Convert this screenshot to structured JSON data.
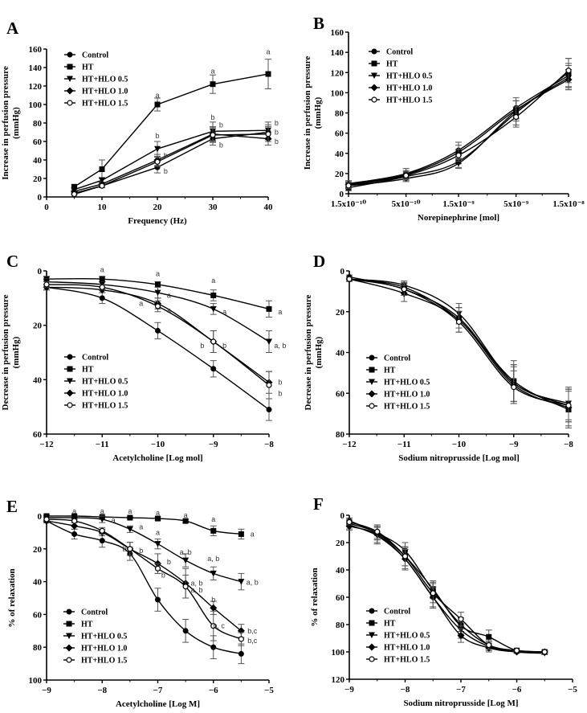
{
  "legend_labels": [
    "Control",
    "HT",
    "HT+HLO 0.5",
    "HT+HLO 1.0",
    "HT+HLO 1.5"
  ],
  "marker_shapes": [
    "filled-circle",
    "filled-square",
    "filled-triangle-down",
    "filled-diamond",
    "open-circle"
  ],
  "colors": {
    "line": "#000000",
    "error_bar": "#555555"
  },
  "chart_data": [
    {
      "panel": "A",
      "type": "line",
      "curve": "straight",
      "xlabel": "Frequency (Hz)",
      "ylabel": [
        "Increase in perfusion pressure",
        "(mmHg)"
      ],
      "xlim": [
        0,
        40
      ],
      "ylim": [
        0,
        160
      ],
      "y_inverted": false,
      "xscale": "linear",
      "xticks": [
        0,
        10,
        20,
        30,
        40
      ],
      "xtick_labels": [
        "0",
        "10",
        "20",
        "30",
        "40"
      ],
      "yticks": [
        0,
        20,
        40,
        60,
        80,
        100,
        120,
        140,
        160
      ],
      "legend": "top-left",
      "x": [
        5,
        10,
        20,
        30,
        40
      ],
      "series": [
        {
          "name": "Control",
          "values": [
            4,
            12,
            32,
            63,
            70
          ],
          "errors": [
            1,
            2,
            6,
            7,
            8
          ]
        },
        {
          "name": "HT",
          "values": [
            11,
            30,
            100,
            122,
            133
          ],
          "errors": [
            2,
            10,
            7,
            10,
            16
          ]
        },
        {
          "name": "HT+HLO 0.5",
          "values": [
            8,
            18,
            52,
            71,
            72
          ],
          "errors": [
            2,
            3,
            8,
            10,
            9
          ]
        },
        {
          "name": "HT+HLO 1.0",
          "values": [
            6,
            14,
            40,
            68,
            63
          ],
          "errors": [
            1,
            2,
            6,
            8,
            7
          ]
        },
        {
          "name": "HT+HLO 1.5",
          "values": [
            3,
            12,
            38,
            67,
            68
          ],
          "errors": [
            1,
            2,
            5,
            8,
            8
          ]
        }
      ],
      "annotations": [
        {
          "x": 20,
          "y": 110,
          "text": "a"
        },
        {
          "x": 30,
          "y": 136,
          "text": "a"
        },
        {
          "x": 40,
          "y": 157,
          "text": "a"
        },
        {
          "x": 20,
          "y": 66,
          "text": "b"
        },
        {
          "x": 21.5,
          "y": 45,
          "text": "b"
        },
        {
          "x": 21.5,
          "y": 28,
          "text": "b"
        },
        {
          "x": 30,
          "y": 86,
          "text": "b"
        },
        {
          "x": 31.5,
          "y": 78,
          "text": "b"
        },
        {
          "x": 31.5,
          "y": 56,
          "text": "b"
        },
        {
          "x": 41.5,
          "y": 80,
          "text": "b"
        },
        {
          "x": 41.5,
          "y": 70,
          "text": "b"
        },
        {
          "x": 41.5,
          "y": 60,
          "text": "b"
        }
      ]
    },
    {
      "panel": "B",
      "type": "line",
      "curve": "smooth",
      "xlabel": "Norepinephrine [mol]",
      "ylabel": [
        "Increase in perfusion pressure",
        "(mmHg)"
      ],
      "xlim": [
        1.5e-10,
        1.5e-08
      ],
      "ylim": [
        0,
        160
      ],
      "y_inverted": false,
      "xscale": "log",
      "xticks": [
        1.5e-10,
        5e-10,
        1.5e-09,
        5e-09,
        1.5e-08
      ],
      "xtick_labels": [
        "1.5x10⁻¹⁰",
        "5x10⁻¹⁰",
        "1.5x10⁻⁹",
        "5x10⁻⁹",
        "1.5x10⁻⁸"
      ],
      "yticks": [
        0,
        20,
        40,
        60,
        80,
        100,
        120,
        140,
        160
      ],
      "legend": "top-left",
      "x": [
        1.5e-10,
        5e-10,
        1.5e-09,
        5e-09,
        1.5e-08
      ],
      "series": [
        {
          "name": "Control",
          "values": [
            10,
            20,
            43,
            85,
            117
          ],
          "errors": [
            3,
            5,
            8,
            10,
            12
          ]
        },
        {
          "name": "HT",
          "values": [
            6,
            17,
            32,
            80,
            120
          ],
          "errors": [
            3,
            4,
            6,
            12,
            14
          ]
        },
        {
          "name": "HT+HLO 0.5",
          "values": [
            8,
            15,
            30,
            82,
            115
          ],
          "errors": [
            3,
            3,
            5,
            10,
            12
          ]
        },
        {
          "name": "HT+HLO 1.0",
          "values": [
            9,
            19,
            41,
            83,
            113
          ],
          "errors": [
            3,
            4,
            7,
            9,
            10
          ]
        },
        {
          "name": "HT+HLO 1.5",
          "values": [
            8,
            18,
            38,
            76,
            122
          ],
          "errors": [
            3,
            4,
            6,
            10,
            12
          ]
        }
      ],
      "annotations": []
    },
    {
      "panel": "C",
      "type": "line",
      "curve": "smooth",
      "xlabel": "Acetylcholine [Log mol]",
      "ylabel": [
        "Decrease in perfusion pressure",
        "(mmHg)"
      ],
      "xlim": [
        -12,
        -8
      ],
      "ylim": [
        0,
        60
      ],
      "y_inverted": true,
      "xscale": "linear",
      "xticks": [
        -12,
        -11,
        -10,
        -9,
        -8
      ],
      "xtick_labels": [
        "−12",
        "−11",
        "−10",
        "−9",
        "−8"
      ],
      "yticks": [
        0,
        20,
        40,
        60
      ],
      "legend": "bottom-left",
      "x": [
        -12,
        -11,
        -10,
        -9,
        -8
      ],
      "series": [
        {
          "name": "Control",
          "values": [
            6,
            10,
            22,
            36,
            51
          ],
          "errors": [
            1,
            2,
            3,
            3,
            4
          ]
        },
        {
          "name": "HT",
          "values": [
            3,
            3,
            5,
            9,
            14
          ],
          "errors": [
            1,
            1,
            1,
            2,
            3
          ]
        },
        {
          "name": "HT+HLO 0.5",
          "values": [
            4,
            5,
            8,
            14,
            26
          ],
          "errors": [
            1,
            1,
            2,
            2,
            4
          ]
        },
        {
          "name": "HT+HLO 1.0",
          "values": [
            6,
            7,
            12,
            26,
            41
          ],
          "errors": [
            1,
            1,
            2,
            4,
            4
          ]
        },
        {
          "name": "HT+HLO 1.5",
          "values": [
            5,
            6,
            13,
            26,
            42
          ],
          "errors": [
            1,
            1,
            2,
            4,
            5
          ]
        }
      ],
      "annotations": [
        {
          "x": -11,
          "y": -0.5,
          "text": "a"
        },
        {
          "x": -10,
          "y": 1,
          "text": "a"
        },
        {
          "x": -9,
          "y": 3.5,
          "text": "a"
        },
        {
          "x": -9.8,
          "y": 9,
          "text": "a"
        },
        {
          "x": -10.3,
          "y": 12,
          "text": "a"
        },
        {
          "x": -9.8,
          "y": 14.5,
          "text": "a"
        },
        {
          "x": -8.8,
          "y": 15,
          "text": "a"
        },
        {
          "x": -7.8,
          "y": 15,
          "text": "a"
        },
        {
          "x": -7.8,
          "y": 27.5,
          "text": "a, b"
        },
        {
          "x": -9.2,
          "y": 27.5,
          "text": "b"
        },
        {
          "x": -8.8,
          "y": 27.5,
          "text": "b"
        },
        {
          "x": -7.8,
          "y": 41,
          "text": "b"
        },
        {
          "x": -7.8,
          "y": 45,
          "text": "b"
        }
      ]
    },
    {
      "panel": "D",
      "type": "line",
      "curve": "smooth",
      "xlabel": "Sodium nitroprusside [Log mol]",
      "ylabel": [
        "Decrease in perfusion pressure",
        "(mmHg)"
      ],
      "xlim": [
        -12,
        -8
      ],
      "ylim": [
        0,
        80
      ],
      "y_inverted": true,
      "xscale": "linear",
      "xticks": [
        -12,
        -11,
        -10,
        -9,
        -8
      ],
      "xtick_labels": [
        "−12",
        "−11",
        "−10",
        "−9",
        "−8"
      ],
      "yticks": [
        0,
        20,
        40,
        60,
        80
      ],
      "legend": "bottom-left",
      "x": [
        -12,
        -11,
        -10,
        -9,
        -8
      ],
      "series": [
        {
          "name": "Control",
          "values": [
            3,
            9,
            23,
            55,
            66
          ],
          "errors": [
            1,
            3,
            5,
            9,
            8
          ]
        },
        {
          "name": "HT",
          "values": [
            4,
            8,
            24,
            54,
            68
          ],
          "errors": [
            1,
            3,
            6,
            10,
            9
          ]
        },
        {
          "name": "HT+HLO 0.5",
          "values": [
            4,
            7,
            21,
            55,
            65
          ],
          "errors": [
            1,
            2,
            5,
            9,
            8
          ]
        },
        {
          "name": "HT+HLO 1.0",
          "values": [
            4,
            11,
            24,
            56,
            67
          ],
          "errors": [
            1,
            4,
            6,
            9,
            9
          ]
        },
        {
          "name": "HT+HLO 1.5",
          "values": [
            4,
            9,
            25,
            57,
            66
          ],
          "errors": [
            1,
            3,
            5,
            8,
            8
          ]
        }
      ],
      "annotations": []
    },
    {
      "panel": "E",
      "type": "line",
      "curve": "smooth",
      "xlabel": "Acetylcholine [Log M]",
      "ylabel": [
        "% of relaxation"
      ],
      "xlim": [
        -9,
        -5
      ],
      "ylim": [
        0,
        100
      ],
      "y_inverted": true,
      "xscale": "linear",
      "xticks": [
        -9,
        -8,
        -7,
        -6,
        -5
      ],
      "xtick_labels": [
        "−9",
        "−8",
        "−7",
        "−6",
        "−5"
      ],
      "yticks": [
        0,
        20,
        40,
        60,
        80,
        100
      ],
      "legend": "bottom-left",
      "x": [
        -9,
        -8.5,
        -8,
        -7.5,
        -7,
        -6.5,
        -6,
        -5.5
      ],
      "series": [
        {
          "name": "Control",
          "values": [
            3,
            11,
            15,
            23,
            51,
            70,
            80,
            84
          ],
          "errors": [
            1,
            3,
            4,
            4,
            7,
            7,
            7,
            6
          ]
        },
        {
          "name": "HT",
          "values": [
            0,
            0,
            0.5,
            1,
            1.5,
            3,
            9,
            11
          ],
          "errors": [
            0.5,
            0.5,
            0.5,
            0.5,
            1,
            1,
            3,
            3
          ]
        },
        {
          "name": "HT+HLO 0.5",
          "values": [
            1,
            1,
            2,
            8,
            17,
            27,
            35,
            40
          ],
          "errors": [
            1,
            1,
            2,
            2,
            3,
            4,
            4,
            5
          ]
        },
        {
          "name": "HT+HLO 1.0",
          "values": [
            3,
            6,
            10,
            20,
            29,
            41,
            56,
            70
          ],
          "errors": [
            1,
            2,
            2,
            4,
            6,
            9,
            4,
            4
          ]
        },
        {
          "name": "HT+HLO 1.5",
          "values": [
            2,
            3,
            9,
            20,
            32,
            43,
            67,
            75
          ],
          "errors": [
            1,
            1,
            2,
            4,
            3,
            7,
            9,
            4
          ]
        }
      ],
      "annotations": [
        {
          "x": -8.5,
          "y": -3,
          "text": "a"
        },
        {
          "x": -8,
          "y": -3,
          "text": "a"
        },
        {
          "x": -7.5,
          "y": -3,
          "text": "a"
        },
        {
          "x": -7,
          "y": -2,
          "text": "a"
        },
        {
          "x": -6.5,
          "y": -0.5,
          "text": "a"
        },
        {
          "x": -6,
          "y": 2,
          "text": "a"
        },
        {
          "x": -5.3,
          "y": 11,
          "text": "a"
        },
        {
          "x": -7.8,
          "y": 2.5,
          "text": "a"
        },
        {
          "x": -7.3,
          "y": 6.5,
          "text": "a"
        },
        {
          "x": -7,
          "y": 10,
          "text": "a"
        },
        {
          "x": -6.5,
          "y": 22,
          "text": "a, b"
        },
        {
          "x": -6,
          "y": 26,
          "text": "a, b"
        },
        {
          "x": -5.3,
          "y": 40.5,
          "text": "a, b"
        },
        {
          "x": -6.3,
          "y": 41,
          "text": "a, b"
        },
        {
          "x": -6.3,
          "y": 45,
          "text": "a, b"
        },
        {
          "x": -7.6,
          "y": 20,
          "text": "b"
        },
        {
          "x": -7.3,
          "y": 21,
          "text": "b"
        },
        {
          "x": -6.8,
          "y": 28,
          "text": "b"
        },
        {
          "x": -6.9,
          "y": 36,
          "text": "b"
        },
        {
          "x": -6,
          "y": 51,
          "text": "b"
        },
        {
          "x": -5.9,
          "y": 67,
          "text": "b, c"
        },
        {
          "x": -5.3,
          "y": 70,
          "text": "b,c"
        },
        {
          "x": -5.3,
          "y": 76,
          "text": "b,c"
        }
      ]
    },
    {
      "panel": "F",
      "type": "line",
      "curve": "smooth",
      "xlabel": "Sodium nitroprusside [Log M]",
      "ylabel": [
        "% of relaxation"
      ],
      "xlim": [
        -9,
        -5
      ],
      "ylim": [
        0,
        120
      ],
      "y_inverted": true,
      "xscale": "linear",
      "xticks": [
        -9,
        -8,
        -7,
        -6,
        -5
      ],
      "xtick_labels": [
        "−9",
        "−8",
        "−7",
        "−6",
        "−5"
      ],
      "yticks": [
        0,
        20,
        40,
        60,
        80,
        100,
        120
      ],
      "legend": "bottom-left",
      "x": [
        -9,
        -8.5,
        -8,
        -7.5,
        -7,
        -6.5,
        -6,
        -5.5
      ],
      "series": [
        {
          "name": "Control",
          "values": [
            4,
            13,
            26,
            55,
            80,
            95,
            99,
            100
          ],
          "errors": [
            2,
            5,
            6,
            6,
            5,
            3,
            1,
            1
          ]
        },
        {
          "name": "HT",
          "values": [
            6,
            13,
            30,
            54,
            81,
            89,
            99,
            100
          ],
          "errors": [
            2,
            5,
            7,
            6,
            6,
            5,
            1,
            1
          ]
        },
        {
          "name": "HT+HLO 0.5",
          "values": [
            7,
            15,
            32,
            60,
            84,
            96,
            100,
            101
          ],
          "errors": [
            3,
            6,
            7,
            7,
            6,
            3,
            1,
            1
          ]
        },
        {
          "name": "HT+HLO 1.0",
          "values": [
            8,
            14,
            32,
            60,
            88,
            97,
            100,
            100
          ],
          "errors": [
            3,
            6,
            8,
            8,
            5,
            3,
            1,
            1
          ]
        },
        {
          "name": "HT+HLO 1.5",
          "values": [
            5,
            12,
            30,
            57,
            76,
            95,
            99,
            100
          ],
          "errors": [
            2,
            5,
            7,
            7,
            5,
            3,
            1,
            1
          ]
        }
      ],
      "annotations": []
    }
  ]
}
